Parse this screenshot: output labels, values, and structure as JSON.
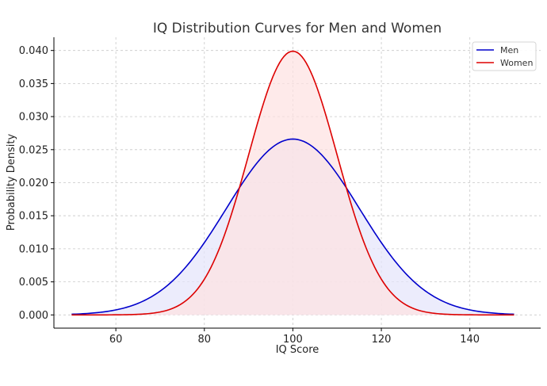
{
  "chart_data": {
    "type": "line",
    "title": "IQ Distribution Curves for Men and Women",
    "xlabel": "IQ Score",
    "ylabel": "Probability Density",
    "xlim": [
      46,
      156
    ],
    "ylim": [
      -0.002,
      0.042
    ],
    "x_ticks": [
      60,
      80,
      100,
      120,
      140
    ],
    "y_ticks": [
      0.0,
      0.005,
      0.01,
      0.015,
      0.02,
      0.025,
      0.03,
      0.035,
      0.04
    ],
    "grid": true,
    "legend_position": "top-right",
    "x_range": [
      50,
      150
    ],
    "series": [
      {
        "name": "Men",
        "distribution": "normal",
        "mean": 100,
        "std_dev": 15,
        "peak_density": 0.0266,
        "line_color": "#0000cc",
        "fill_color": "#e5e5fb"
      },
      {
        "name": "Women",
        "distribution": "normal",
        "mean": 100,
        "std_dev": 10,
        "peak_density": 0.0399,
        "line_color": "#dd0000",
        "fill_color": "#fde2e2"
      }
    ]
  }
}
